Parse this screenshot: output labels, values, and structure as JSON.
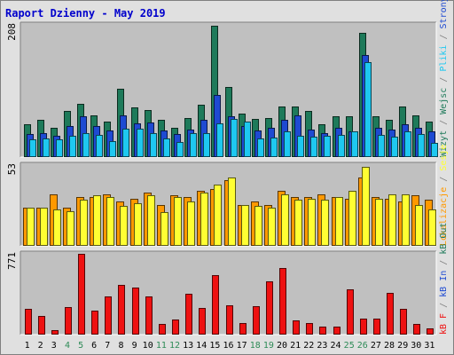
{
  "title": "Raport Dzienny -  May 2019",
  "colors": {
    "frame_bg": "#e0e0e0",
    "plot_bg": "#c0c0c0",
    "title": "#0000cc",
    "wizyt": "#1e7a5a",
    "strony": "#1e4ad2",
    "pliki": "#1ec8f0",
    "lokalizacje": "#ff9900",
    "ksessions": "#ffff33",
    "kb_f": "#ee1111",
    "weekend": "#2e8b57",
    "weekday": "#000000"
  },
  "chart_data": [
    {
      "type": "bar",
      "name": "top",
      "ymax_label": "208",
      "ylim": [
        0,
        208
      ],
      "categories": [
        "1",
        "2",
        "3",
        "4",
        "5",
        "6",
        "7",
        "8",
        "9",
        "10",
        "11",
        "12",
        "13",
        "14",
        "15",
        "16",
        "17",
        "18",
        "19",
        "20",
        "21",
        "22",
        "23",
        "24",
        "25",
        "26",
        "27",
        "28",
        "29",
        "30",
        "31"
      ],
      "weekend_days": [
        "4",
        "5",
        "11",
        "12",
        "18",
        "19",
        "25",
        "26"
      ],
      "side_label_parts": [
        {
          "text": "Wizyt",
          "color": "#1e7a5a"
        },
        {
          "text": "Wejsc",
          "color": "#1e7a5a"
        },
        {
          "text": "Pliki",
          "color": "#1ec8f0"
        },
        {
          "text": "Strony",
          "color": "#1e4ad2"
        }
      ],
      "series": [
        {
          "key": "wizyt",
          "values": [
            52,
            58,
            46,
            72,
            84,
            66,
            56,
            107,
            78,
            74,
            58,
            46,
            62,
            82,
            206,
            110,
            68,
            60,
            62,
            80,
            80,
            72,
            52,
            64,
            64,
            196,
            64,
            58,
            80,
            66,
            56
          ]
        },
        {
          "key": "strony",
          "values": [
            36,
            38,
            33,
            49,
            64,
            49,
            42,
            65,
            53,
            55,
            42,
            36,
            43,
            59,
            98,
            64,
            49,
            42,
            46,
            59,
            66,
            43,
            38,
            46,
            41,
            160,
            46,
            43,
            51,
            46,
            40
          ]
        },
        {
          "key": "pliki",
          "values": [
            28,
            30,
            28,
            33,
            38,
            35,
            25,
            45,
            45,
            38,
            29,
            24,
            37,
            38,
            53,
            60,
            56,
            30,
            31,
            40,
            33,
            32,
            33,
            35,
            40,
            150,
            35,
            32,
            41,
            36,
            23
          ]
        }
      ]
    },
    {
      "type": "bar",
      "name": "middle",
      "ymax_label": "53",
      "ylim": [
        0,
        53
      ],
      "side_label_parts": [
        {
          "text": "Lokalizacje",
          "color": "#ff9900"
        },
        {
          "text": "Sesje",
          "color": "#ffff33"
        }
      ],
      "series": [
        {
          "key": "lokalizacje",
          "values": [
            25,
            25,
            34,
            25,
            32,
            32,
            34,
            29,
            31,
            35,
            27,
            33,
            32,
            36,
            37,
            43,
            27,
            29,
            27,
            36,
            32,
            32,
            34,
            32,
            31,
            45,
            32,
            31,
            29,
            33,
            30
          ]
        },
        {
          "key": "ksessions",
          "values": [
            25,
            25,
            24,
            23,
            30,
            33,
            32,
            26,
            28,
            33,
            22,
            32,
            29,
            35,
            40,
            45,
            27,
            26,
            25,
            34,
            30,
            31,
            30,
            32,
            36,
            52,
            31,
            34,
            34,
            27,
            24
          ]
        }
      ]
    },
    {
      "type": "bar",
      "name": "bottom",
      "ymax_label": "771",
      "ylim": [
        0,
        771
      ],
      "side_label_parts": [
        {
          "text": "kB F",
          "color": "#ee1111"
        },
        {
          "text": "kB In",
          "color": "#1e4ad2"
        },
        {
          "text": "kB Out",
          "color": "#1e7a5a"
        }
      ],
      "series": [
        {
          "key": "kb_f",
          "values": [
            245,
            175,
            45,
            260,
            770,
            225,
            365,
            475,
            450,
            365,
            105,
            145,
            390,
            255,
            565,
            280,
            110,
            270,
            505,
            635,
            135,
            110,
            75,
            80,
            430,
            155,
            155,
            395,
            245,
            100,
            60
          ]
        }
      ]
    }
  ]
}
